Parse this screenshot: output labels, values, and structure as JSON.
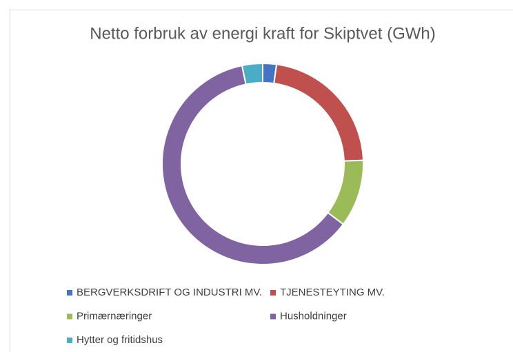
{
  "chart_data": {
    "type": "doughnut",
    "title": "Netto forbruk av energi kraft for Skiptvet (GWh)",
    "categories": [
      "BERGVERKSDRIFT OG INDUSTRI MV.",
      "TJENESTEYTING MV.",
      "Primærnæringer",
      "Husholdninger",
      "Hytter og fritidshus"
    ],
    "values": [
      2.2,
      22.2,
      10.8,
      61.4,
      3.3
    ],
    "colors": [
      "#4472c4",
      "#c0504d",
      "#9bbb59",
      "#8064a2",
      "#4bacc6"
    ],
    "legend": "bottom"
  }
}
